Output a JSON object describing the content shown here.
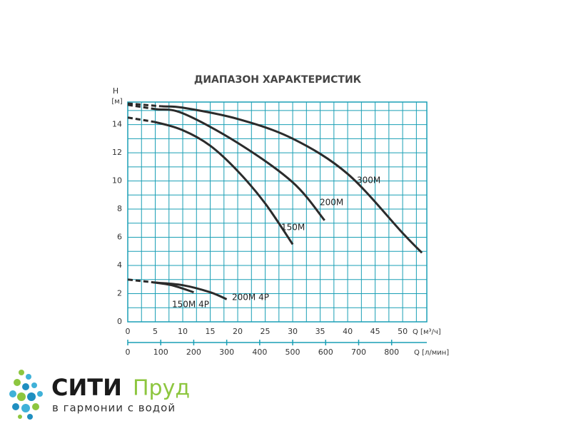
{
  "chart_data": {
    "type": "line",
    "title": "ДИАПАЗОН ХАРАКТЕРИСТИК",
    "y_label": "H",
    "y_unit": "[м]",
    "x_label": "Q [м³/ч]",
    "x2_label": "Q [л/мин]",
    "xlim": [
      0,
      54.4
    ],
    "ylim": [
      0,
      15.6
    ],
    "xticks": [
      0,
      5,
      10,
      15,
      20,
      25,
      30,
      35,
      40,
      45,
      50
    ],
    "yticks": [
      0,
      2,
      4,
      6,
      8,
      10,
      12,
      14
    ],
    "x2lim": [
      0,
      906.7
    ],
    "x2ticks": [
      0,
      100,
      200,
      300,
      400,
      500,
      600,
      700,
      800
    ],
    "grid": true,
    "grid_color": "#1a9fb5",
    "series": [
      {
        "name": "300M",
        "color": "#2b2b2b",
        "x": [
          0,
          6,
          10,
          20,
          30,
          40,
          50,
          53.5
        ],
        "values": [
          15.5,
          15.3,
          15.2,
          14.4,
          13,
          10.5,
          6.3,
          4.9
        ]
      },
      {
        "name": "200M",
        "color": "#2b2b2b",
        "x": [
          0,
          5,
          10,
          20,
          30,
          35.8
        ],
        "values": [
          15.4,
          15.1,
          14.8,
          12.7,
          9.9,
          7.2
        ]
      },
      {
        "name": "150M",
        "color": "#2b2b2b",
        "x": [
          0,
          4.7,
          10,
          15,
          20,
          25,
          30
        ],
        "values": [
          14.5,
          14.2,
          13.6,
          12.5,
          10.7,
          8.4,
          5.5
        ]
      },
      {
        "name": "200M 4P",
        "color": "#2b2b2b",
        "x": [
          0,
          4.7,
          10,
          15,
          18
        ],
        "values": [
          3.0,
          2.8,
          2.6,
          2.1,
          1.6
        ]
      },
      {
        "name": "150M 4P",
        "color": "#2b2b2b",
        "x": [
          4.7,
          8,
          12
        ],
        "values": [
          2.8,
          2.6,
          2.1
        ]
      }
    ]
  },
  "logo": {
    "brand1": "СИТИ",
    "brand2": "Пруд",
    "tagline": "в гармонии с водой"
  }
}
